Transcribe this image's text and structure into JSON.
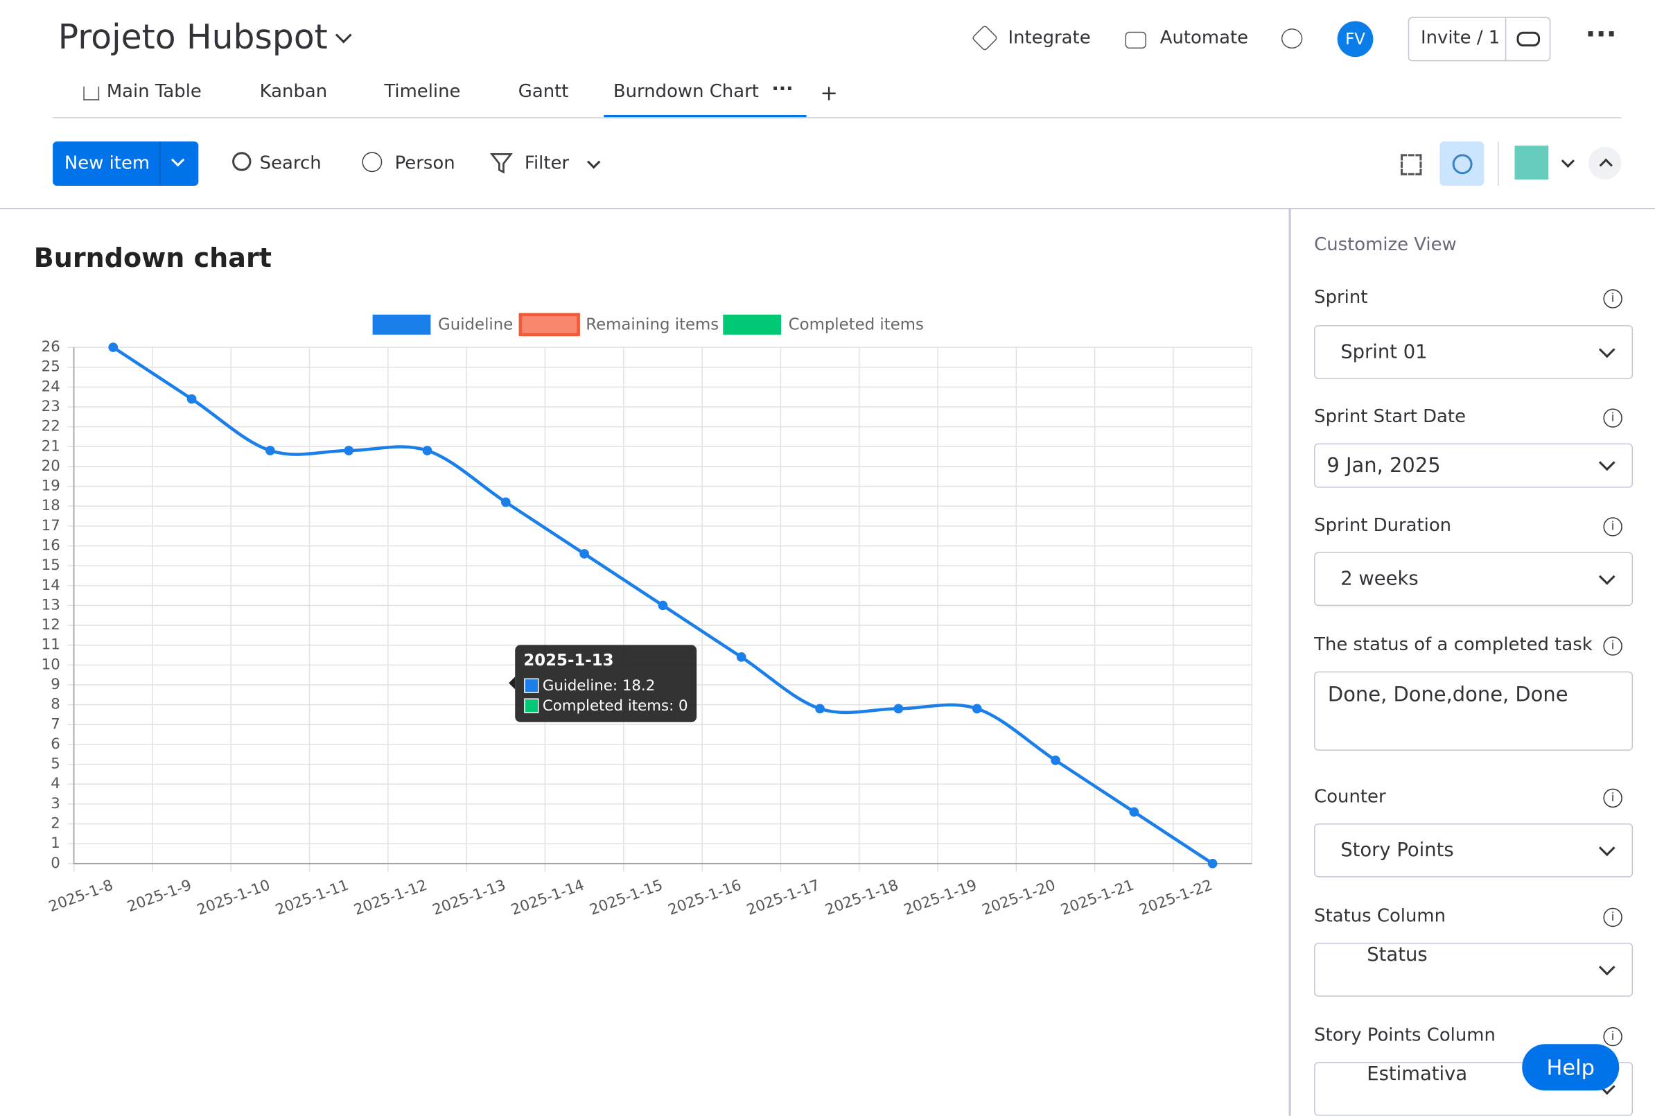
{
  "header": {
    "title": "Projeto Hubspot",
    "actions": [
      "Integrate",
      "Automate"
    ],
    "avatar": "FV",
    "invite": "Invite / 1"
  },
  "tabs": [
    "Main Table",
    "Kanban",
    "Timeline",
    "Gantt",
    "Burndown Chart",
    "+"
  ],
  "toolbar": {
    "new_item": "New item",
    "search": "Search",
    "person": "Person",
    "filter": "Filter"
  },
  "chart_data": {
    "type": "line",
    "title": "Burndown chart",
    "categories": [
      "2025-1-8",
      "2025-1-9",
      "2025-1-10",
      "2025-1-11",
      "2025-1-12",
      "2025-1-13",
      "2025-1-14",
      "2025-1-15",
      "2025-1-16",
      "2025-1-17",
      "2025-1-18",
      "2025-1-19",
      "2025-1-20",
      "2025-1-21",
      "2025-1-22"
    ],
    "series": [
      {
        "name": "Guideline",
        "color": "#1a7fe8",
        "values": [
          26,
          23.4,
          20.8,
          20.8,
          20.8,
          18.2,
          15.6,
          13,
          10.4,
          7.8,
          7.8,
          7.8,
          5.2,
          2.6,
          0
        ]
      },
      {
        "name": "Remaining items",
        "color": "#f7876d"
      },
      {
        "name": "Completed items",
        "color": "#00c875"
      }
    ],
    "ylim": [
      0,
      26
    ],
    "yticks": [
      0,
      1,
      2,
      3,
      4,
      5,
      6,
      7,
      8,
      9,
      10,
      11,
      12,
      13,
      14,
      15,
      16,
      17,
      18,
      19,
      20,
      21,
      22,
      23,
      24,
      25,
      26
    ],
    "grid": true,
    "legend": "top",
    "tooltip": {
      "title": "2025-1-13",
      "lines": [
        "Guideline: 18.2",
        "Completed items: 0"
      ]
    }
  },
  "panel": {
    "title": "Customize View",
    "fields": [
      {
        "label": "Sprint",
        "value": "Sprint 01"
      },
      {
        "label": "Sprint Start Date",
        "value": "9 Jan, 2025"
      },
      {
        "label": "Sprint Duration",
        "value": "2 weeks"
      },
      {
        "label": "The status of a completed task",
        "value": "Done, Done,done, Done"
      },
      {
        "label": "Counter",
        "value": "Story Points"
      },
      {
        "label": "Status Column",
        "value": "Status"
      },
      {
        "label": "Story Points Column",
        "value": "Estimativa"
      }
    ],
    "help": "Help"
  }
}
